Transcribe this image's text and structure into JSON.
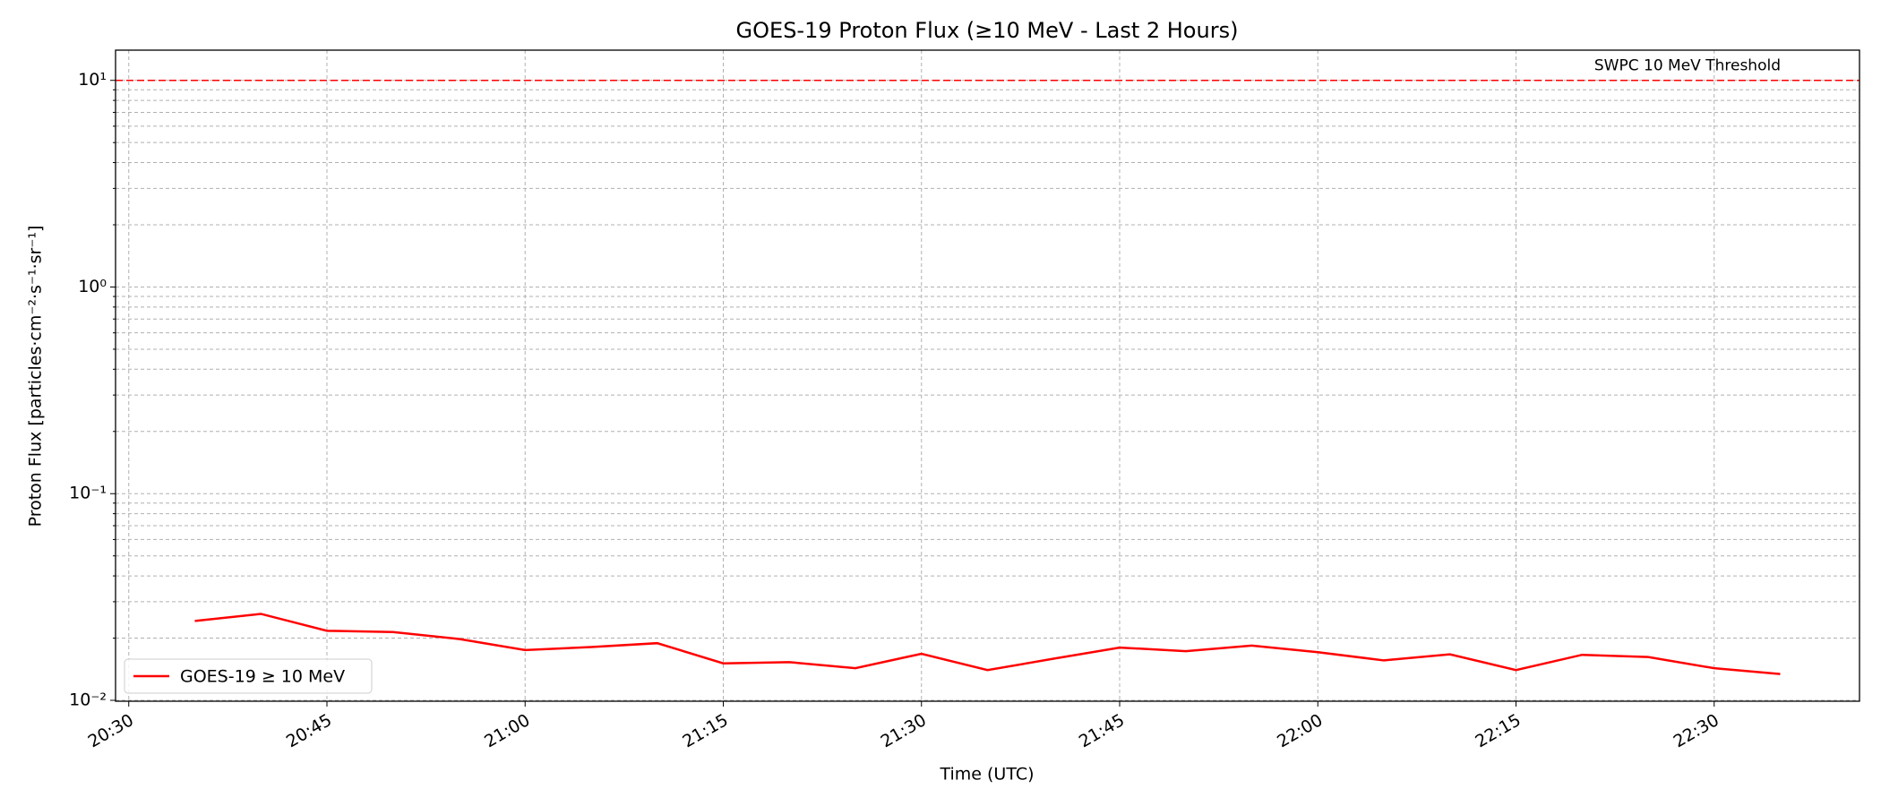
{
  "chart_data": {
    "type": "line",
    "title": "GOES-19 Proton Flux (≥10 MeV - Last 2 Hours)",
    "xlabel": "Time (UTC)",
    "ylabel": "Proton Flux [particles·cm⁻²·s⁻¹·sr⁻¹]",
    "x": [
      "20:35",
      "20:40",
      "20:45",
      "20:50",
      "20:55",
      "21:00",
      "21:05",
      "21:10",
      "21:15",
      "21:20",
      "21:25",
      "21:30",
      "21:35",
      "21:40",
      "21:45",
      "21:50",
      "21:55",
      "22:00",
      "22:05",
      "22:10",
      "22:15",
      "22:20",
      "22:25",
      "22:30",
      "22:35"
    ],
    "series": [
      {
        "name": "GOES-19 ≥ 10 MeV",
        "color": "#ff0000",
        "values": [
          0.0242,
          0.0262,
          0.0217,
          0.0214,
          0.0198,
          0.0175,
          0.0181,
          0.0189,
          0.0151,
          0.0153,
          0.0143,
          0.0168,
          0.014,
          0.0159,
          0.018,
          0.0173,
          0.0184,
          0.0171,
          0.0156,
          0.0167,
          0.014,
          0.0166,
          0.0162,
          0.0143,
          0.0134
        ]
      }
    ],
    "xlim": [
      "20:29",
      "22:41"
    ],
    "xticks": [
      "20:30",
      "20:45",
      "21:00",
      "21:15",
      "21:30",
      "21:45",
      "22:00",
      "22:15",
      "22:30"
    ],
    "ylim": [
      0.0099,
      14
    ],
    "ylog": true,
    "yticks": [
      {
        "value": 0.01,
        "label": "10⁻²"
      },
      {
        "value": 0.1,
        "label": "10⁻¹"
      },
      {
        "value": 1,
        "label": "10⁰"
      },
      {
        "value": 10,
        "label": "10¹"
      }
    ],
    "yminorticks": [
      0.02,
      0.03,
      0.04,
      0.05,
      0.06,
      0.07,
      0.08,
      0.09,
      0.2,
      0.3,
      0.4,
      0.5,
      0.6,
      0.7,
      0.8,
      0.9,
      2,
      3,
      4,
      5,
      6,
      7,
      8,
      9
    ],
    "grid": true,
    "legend": "lower left",
    "threshold": {
      "value": 10,
      "label": "SWPC 10 MeV Threshold",
      "color": "#ff0000"
    }
  }
}
